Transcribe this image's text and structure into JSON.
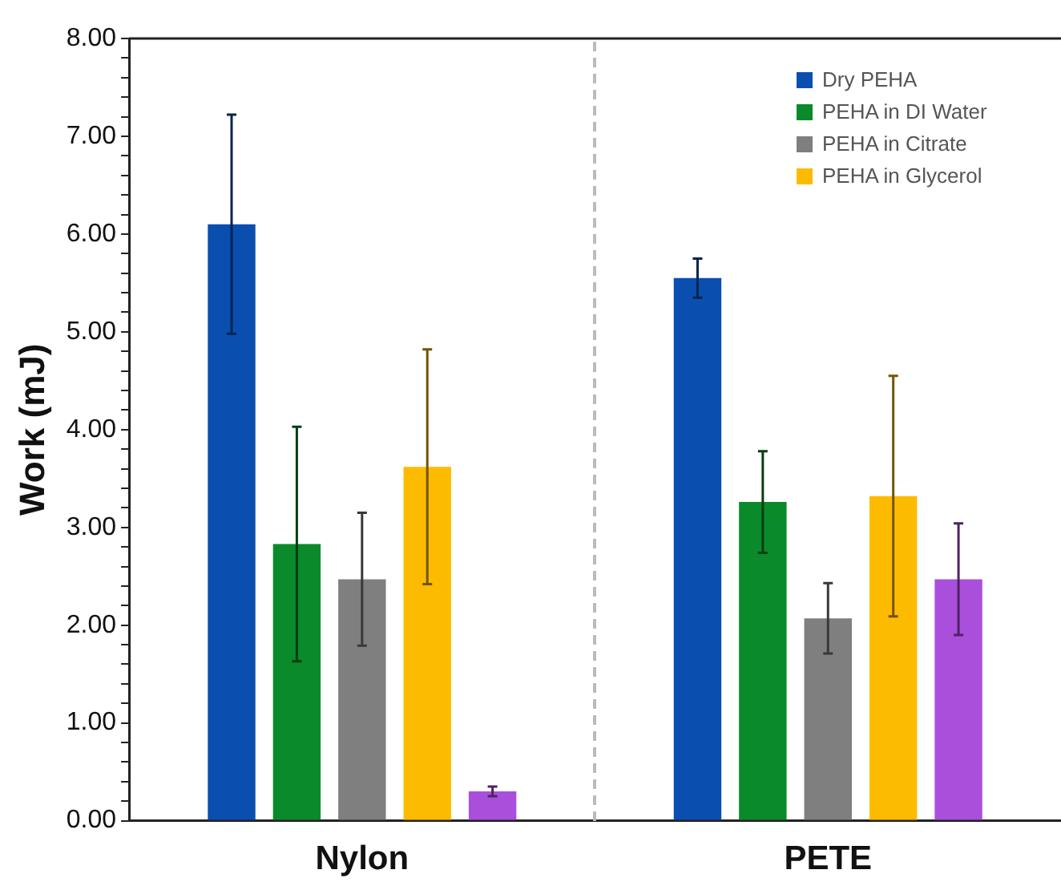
{
  "chart_data": {
    "type": "bar",
    "ylabel": "Work (mJ)",
    "categories": [
      "Nylon",
      "PETE"
    ],
    "series": [
      {
        "name": "Dry PEHA",
        "color": "#0a4fb0",
        "values": [
          6.1,
          5.55
        ],
        "errors": [
          1.12,
          0.2
        ]
      },
      {
        "name": "PEHA in DI Water",
        "color": "#0a8a2a",
        "values": [
          2.83,
          3.26
        ],
        "errors": [
          1.2,
          0.52
        ]
      },
      {
        "name": "PEHA in Citrate",
        "color": "#7f7f7f",
        "values": [
          2.47,
          2.07
        ],
        "errors": [
          0.68,
          0.36
        ]
      },
      {
        "name": "PEHA in Glycerol",
        "color": "#fdbb00",
        "values": [
          3.62,
          3.32
        ],
        "errors": [
          1.2,
          1.23
        ]
      },
      {
        "color": "#a94fdc",
        "values": [
          0.3,
          2.47
        ],
        "errors": [
          0.05,
          0.57
        ]
      }
    ],
    "ylim": [
      0,
      8
    ],
    "yticks": [
      {
        "value": 0,
        "label": "0.00"
      },
      {
        "value": 0.2,
        "label": null
      },
      {
        "value": 0.4,
        "label": null
      },
      {
        "value": 0.6,
        "label": null
      },
      {
        "value": 0.8,
        "label": null
      },
      {
        "value": 1,
        "label": "1.00"
      },
      {
        "value": 1.2,
        "label": null
      },
      {
        "value": 1.4,
        "label": null
      },
      {
        "value": 1.6,
        "label": null
      },
      {
        "value": 1.8,
        "label": null
      },
      {
        "value": 2,
        "label": "2.00"
      },
      {
        "value": 2.2,
        "label": null
      },
      {
        "value": 2.4,
        "label": null
      },
      {
        "value": 2.6,
        "label": null
      },
      {
        "value": 2.8,
        "label": null
      },
      {
        "value": 3,
        "label": "3.00"
      },
      {
        "value": 3.2,
        "label": null
      },
      {
        "value": 3.4,
        "label": null
      },
      {
        "value": 3.6,
        "label": null
      },
      {
        "value": 3.8,
        "label": null
      },
      {
        "value": 4,
        "label": "4.00"
      },
      {
        "value": 4.2,
        "label": null
      },
      {
        "value": 4.4,
        "label": null
      },
      {
        "value": 4.6,
        "label": null
      },
      {
        "value": 4.8,
        "label": null
      },
      {
        "value": 5,
        "label": "5.00"
      },
      {
        "value": 5.2,
        "label": null
      },
      {
        "value": 5.4,
        "label": null
      },
      {
        "value": 5.6,
        "label": null
      },
      {
        "value": 5.8,
        "label": null
      },
      {
        "value": 6,
        "label": "6.00"
      },
      {
        "value": 6.2,
        "label": null
      },
      {
        "value": 6.4,
        "label": null
      },
      {
        "value": 6.6,
        "label": null
      },
      {
        "value": 6.8,
        "label": null
      },
      {
        "value": 7,
        "label": "7.00"
      },
      {
        "value": 7.2,
        "label": null
      },
      {
        "value": 7.4,
        "label": null
      },
      {
        "value": 7.6,
        "label": null
      },
      {
        "value": 7.8,
        "label": null
      },
      {
        "value": 8,
        "label": "8.00"
      }
    ],
    "grid": false,
    "legend": "top right"
  }
}
